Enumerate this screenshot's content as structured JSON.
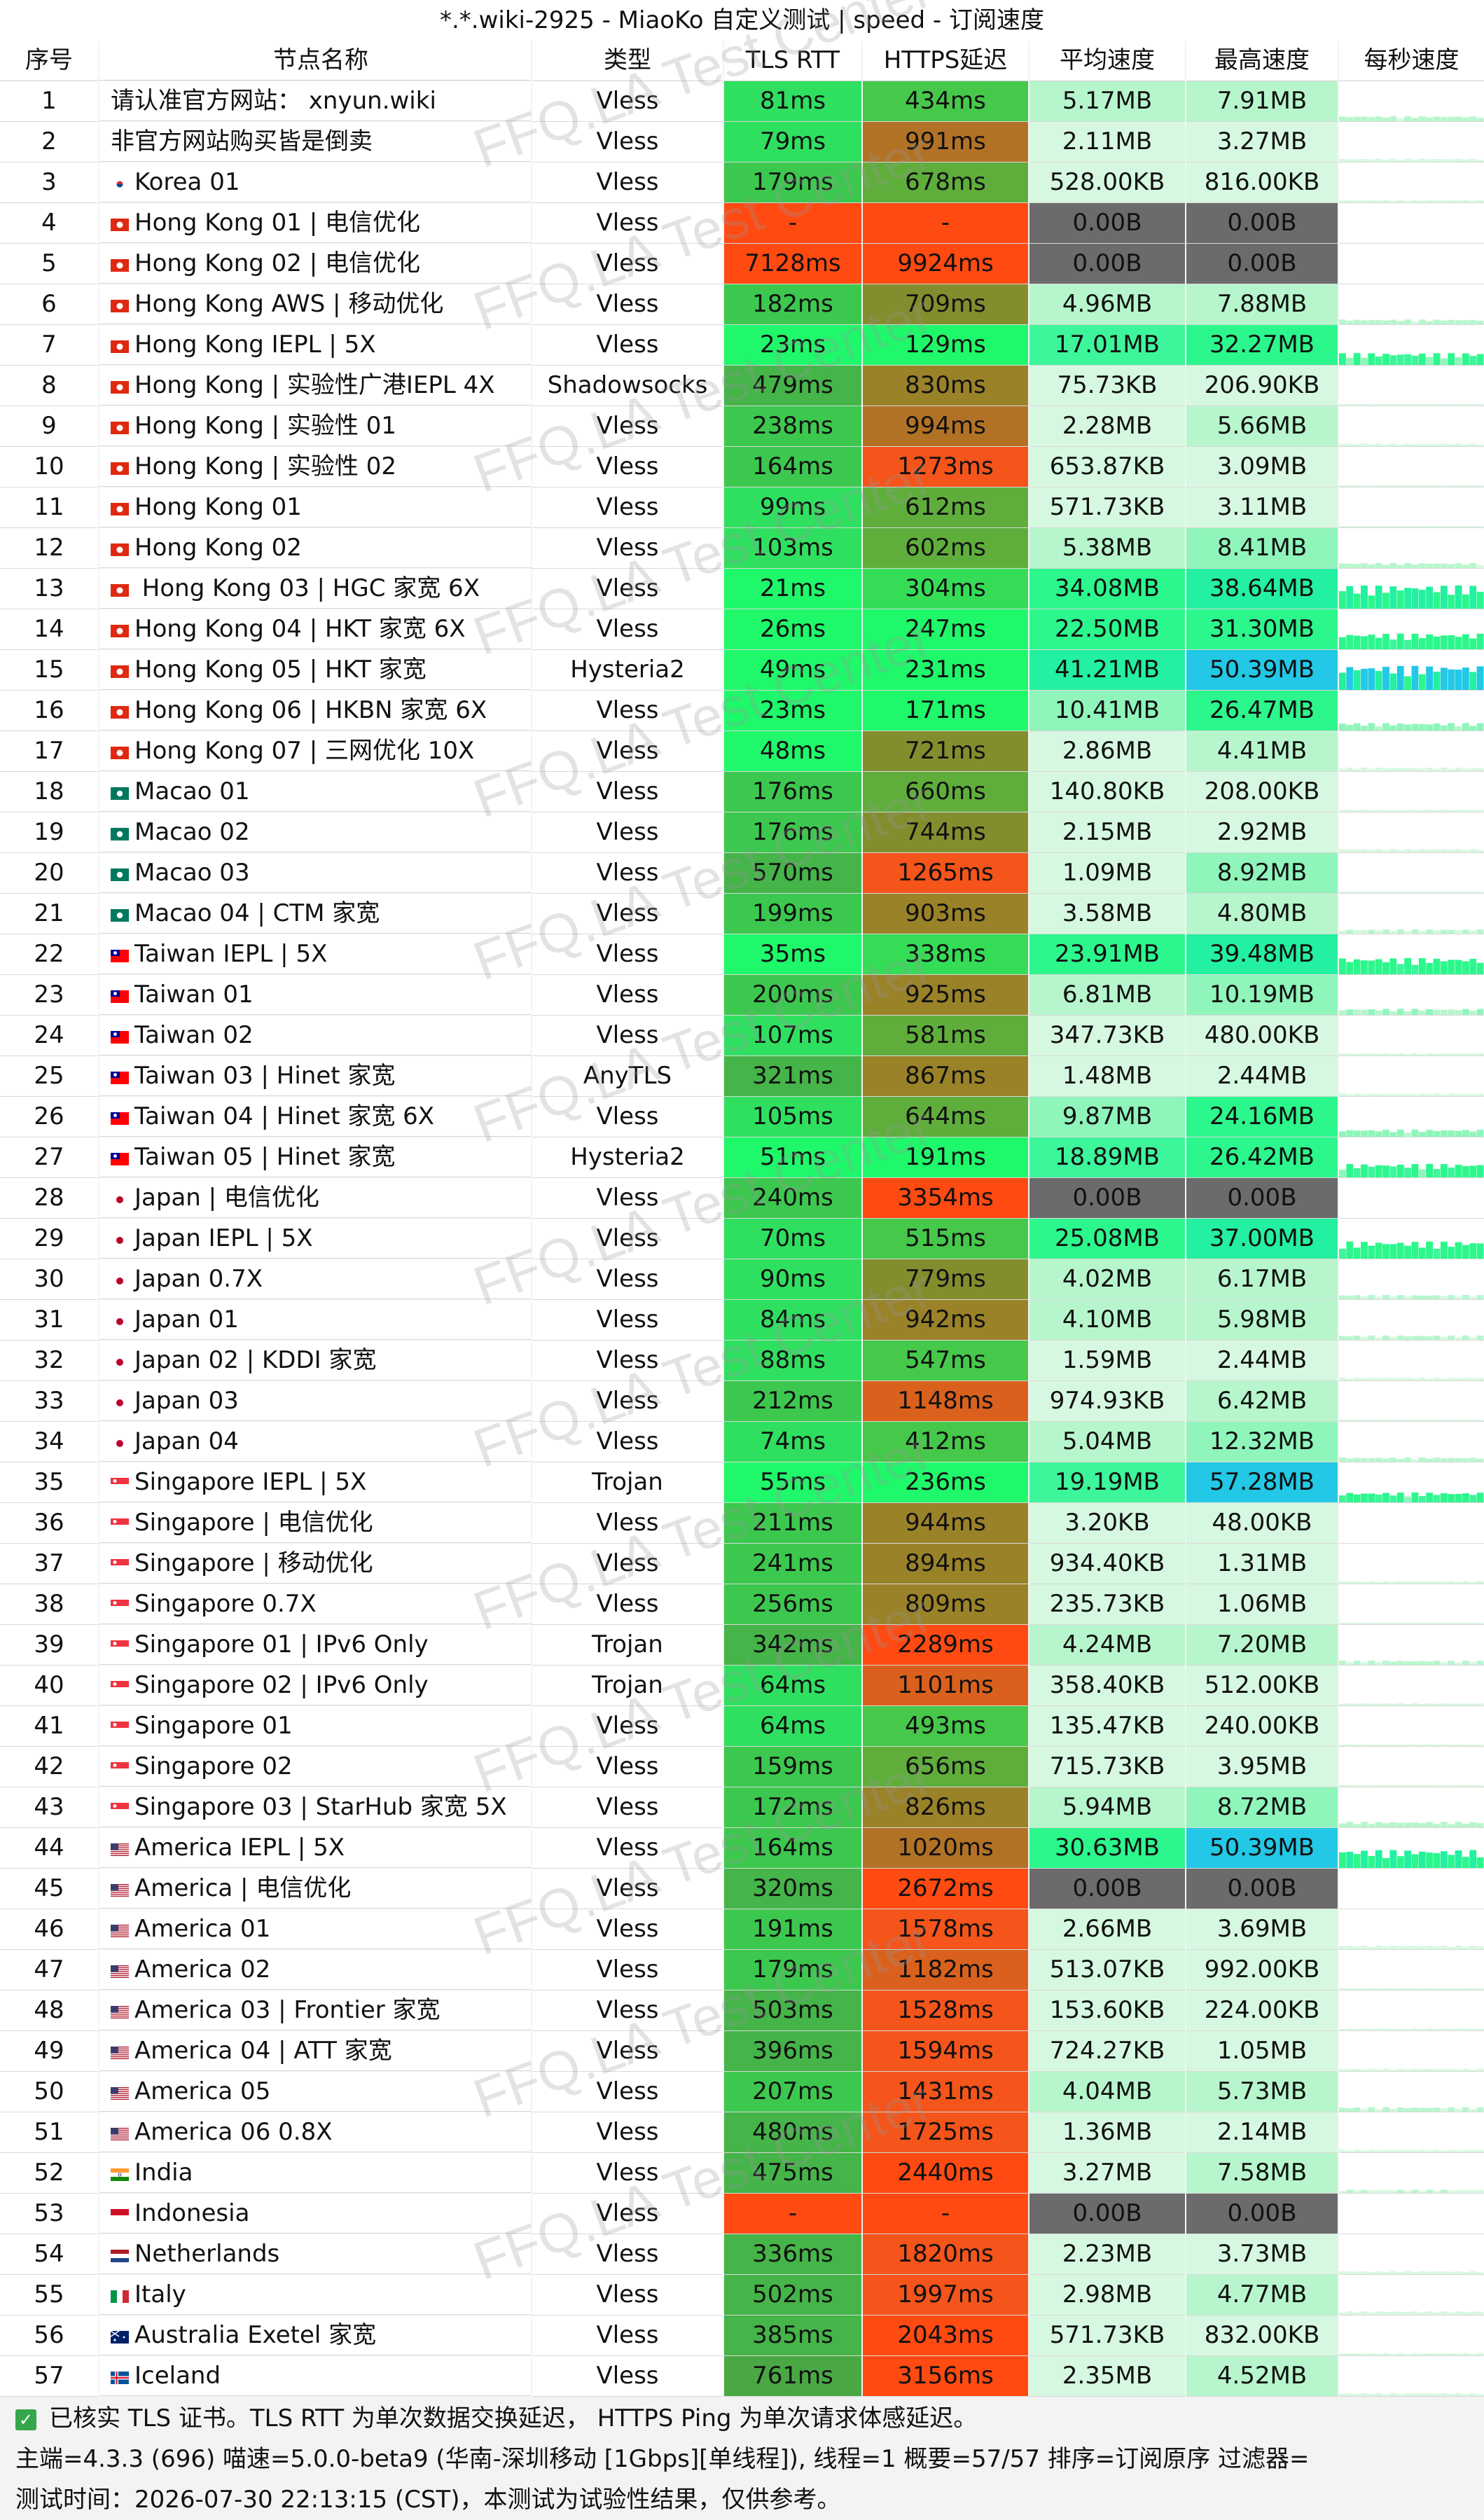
{
  "title": "*.*.wiki-2925 - MiaoKo 自定义测试 | speed - 订阅速度",
  "headers": [
    "序号",
    "节点名称",
    "类型",
    "TLS RTT",
    "HTTPS延迟",
    "平均速度",
    "最高速度",
    "每秒速度"
  ],
  "watermark": "FFQ.LA Test Center",
  "rows": [
    {
      "no": "1",
      "flag": null,
      "name": "请认准官方网站： xnyun.wiki",
      "type": "Vless",
      "tls": "81ms",
      "https": "434ms",
      "avg": "5.17MB",
      "max": "7.91MB"
    },
    {
      "no": "2",
      "flag": null,
      "name": "非官方网站购买皆是倒卖",
      "type": "Vless",
      "tls": "79ms",
      "https": "991ms",
      "avg": "2.11MB",
      "max": "3.27MB"
    },
    {
      "no": "3",
      "flag": "kr",
      "name": "Korea 01",
      "type": "Vless",
      "tls": "179ms",
      "https": "678ms",
      "avg": "528.00KB",
      "max": "816.00KB"
    },
    {
      "no": "4",
      "flag": "hk",
      "name": "Hong Kong 01 | 电信优化",
      "type": "Vless",
      "tls": "-",
      "https": "-",
      "avg": "0.00B",
      "max": "0.00B"
    },
    {
      "no": "5",
      "flag": "hk",
      "name": "Hong Kong 02 | 电信优化",
      "type": "Vless",
      "tls": "7128ms",
      "https": "9924ms",
      "avg": "0.00B",
      "max": "0.00B"
    },
    {
      "no": "6",
      "flag": "hk",
      "name": "Hong Kong AWS | 移动优化",
      "type": "Vless",
      "tls": "182ms",
      "https": "709ms",
      "avg": "4.96MB",
      "max": "7.88MB"
    },
    {
      "no": "7",
      "flag": "hk",
      "name": "Hong Kong IEPL | 5X",
      "type": "Vless",
      "tls": "23ms",
      "https": "129ms",
      "avg": "17.01MB",
      "max": "32.27MB"
    },
    {
      "no": "8",
      "flag": "hk",
      "name": "Hong Kong | 实验性广港IEPL 4X",
      "type": "Shadowsocks",
      "tls": "479ms",
      "https": "830ms",
      "avg": "75.73KB",
      "max": "206.90KB"
    },
    {
      "no": "9",
      "flag": "hk",
      "name": "Hong Kong | 实验性 01",
      "type": "Vless",
      "tls": "238ms",
      "https": "994ms",
      "avg": "2.28MB",
      "max": "5.66MB"
    },
    {
      "no": "10",
      "flag": "hk",
      "name": "Hong Kong | 实验性 02",
      "type": "Vless",
      "tls": "164ms",
      "https": "1273ms",
      "avg": "653.87KB",
      "max": "3.09MB"
    },
    {
      "no": "11",
      "flag": "hk",
      "name": "Hong Kong 01",
      "type": "Vless",
      "tls": "99ms",
      "https": "612ms",
      "avg": "571.73KB",
      "max": "3.11MB"
    },
    {
      "no": "12",
      "flag": "hk",
      "name": "Hong Kong 02",
      "type": "Vless",
      "tls": "103ms",
      "https": "602ms",
      "avg": "5.38MB",
      "max": "8.41MB"
    },
    {
      "no": "13",
      "flag": "hk",
      "name": " Hong Kong 03 | HGC 家宽 6X",
      "type": "Vless",
      "tls": "21ms",
      "https": "304ms",
      "avg": "34.08MB",
      "max": "38.64MB"
    },
    {
      "no": "14",
      "flag": "hk",
      "name": "Hong Kong 04 | HKT 家宽 6X",
      "type": "Vless",
      "tls": "26ms",
      "https": "247ms",
      "avg": "22.50MB",
      "max": "31.30MB"
    },
    {
      "no": "15",
      "flag": "hk",
      "name": "Hong Kong 05 | HKT 家宽",
      "type": "Hysteria2",
      "tls": "49ms",
      "https": "231ms",
      "avg": "41.21MB",
      "max": "50.39MB"
    },
    {
      "no": "16",
      "flag": "hk",
      "name": "Hong Kong 06 | HKBN 家宽 6X",
      "type": "Vless",
      "tls": "23ms",
      "https": "171ms",
      "avg": "10.41MB",
      "max": "26.47MB"
    },
    {
      "no": "17",
      "flag": "hk",
      "name": "Hong Kong 07 | 三网优化 10X",
      "type": "Vless",
      "tls": "48ms",
      "https": "721ms",
      "avg": "2.86MB",
      "max": "4.41MB"
    },
    {
      "no": "18",
      "flag": "mo",
      "name": "Macao 01",
      "type": "Vless",
      "tls": "176ms",
      "https": "660ms",
      "avg": "140.80KB",
      "max": "208.00KB"
    },
    {
      "no": "19",
      "flag": "mo",
      "name": "Macao 02",
      "type": "Vless",
      "tls": "176ms",
      "https": "744ms",
      "avg": "2.15MB",
      "max": "2.92MB"
    },
    {
      "no": "20",
      "flag": "mo",
      "name": "Macao 03",
      "type": "Vless",
      "tls": "570ms",
      "https": "1265ms",
      "avg": "1.09MB",
      "max": "8.92MB"
    },
    {
      "no": "21",
      "flag": "mo",
      "name": "Macao 04 | CTM 家宽",
      "type": "Vless",
      "tls": "199ms",
      "https": "903ms",
      "avg": "3.58MB",
      "max": "4.80MB"
    },
    {
      "no": "22",
      "flag": "tw",
      "name": "Taiwan IEPL | 5X",
      "type": "Vless",
      "tls": "35ms",
      "https": "338ms",
      "avg": "23.91MB",
      "max": "39.48MB"
    },
    {
      "no": "23",
      "flag": "tw",
      "name": "Taiwan 01",
      "type": "Vless",
      "tls": "200ms",
      "https": "925ms",
      "avg": "6.81MB",
      "max": "10.19MB"
    },
    {
      "no": "24",
      "flag": "tw",
      "name": "Taiwan 02",
      "type": "Vless",
      "tls": "107ms",
      "https": "581ms",
      "avg": "347.73KB",
      "max": "480.00KB"
    },
    {
      "no": "25",
      "flag": "tw",
      "name": "Taiwan 03 | Hinet 家宽",
      "type": "AnyTLS",
      "tls": "321ms",
      "https": "867ms",
      "avg": "1.48MB",
      "max": "2.44MB"
    },
    {
      "no": "26",
      "flag": "tw",
      "name": "Taiwan 04 | Hinet 家宽 6X",
      "type": "Vless",
      "tls": "105ms",
      "https": "644ms",
      "avg": "9.87MB",
      "max": "24.16MB"
    },
    {
      "no": "27",
      "flag": "tw",
      "name": "Taiwan 05 | Hinet 家宽",
      "type": "Hysteria2",
      "tls": "51ms",
      "https": "191ms",
      "avg": "18.89MB",
      "max": "26.42MB"
    },
    {
      "no": "28",
      "flag": "jp",
      "name": "Japan | 电信优化",
      "type": "Vless",
      "tls": "240ms",
      "https": "3354ms",
      "avg": "0.00B",
      "max": "0.00B"
    },
    {
      "no": "29",
      "flag": "jp",
      "name": "Japan IEPL | 5X",
      "type": "Vless",
      "tls": "70ms",
      "https": "515ms",
      "avg": "25.08MB",
      "max": "37.00MB"
    },
    {
      "no": "30",
      "flag": "jp",
      "name": "Japan 0.7X",
      "type": "Vless",
      "tls": "90ms",
      "https": "779ms",
      "avg": "4.02MB",
      "max": "6.17MB"
    },
    {
      "no": "31",
      "flag": "jp",
      "name": "Japan 01",
      "type": "Vless",
      "tls": "84ms",
      "https": "942ms",
      "avg": "4.10MB",
      "max": "5.98MB"
    },
    {
      "no": "32",
      "flag": "jp",
      "name": "Japan 02 | KDDI 家宽",
      "type": "Vless",
      "tls": "88ms",
      "https": "547ms",
      "avg": "1.59MB",
      "max": "2.44MB"
    },
    {
      "no": "33",
      "flag": "jp",
      "name": "Japan 03",
      "type": "Vless",
      "tls": "212ms",
      "https": "1148ms",
      "avg": "974.93KB",
      "max": "6.42MB"
    },
    {
      "no": "34",
      "flag": "jp",
      "name": "Japan 04",
      "type": "Vless",
      "tls": "74ms",
      "https": "412ms",
      "avg": "5.04MB",
      "max": "12.32MB"
    },
    {
      "no": "35",
      "flag": "sg",
      "name": "Singapore IEPL | 5X",
      "type": "Trojan",
      "tls": "55ms",
      "https": "236ms",
      "avg": "19.19MB",
      "max": "57.28MB"
    },
    {
      "no": "36",
      "flag": "sg",
      "name": "Singapore | 电信优化",
      "type": "Vless",
      "tls": "211ms",
      "https": "944ms",
      "avg": "3.20KB",
      "max": "48.00KB"
    },
    {
      "no": "37",
      "flag": "sg",
      "name": "Singapore | 移动优化",
      "type": "Vless",
      "tls": "241ms",
      "https": "894ms",
      "avg": "934.40KB",
      "max": "1.31MB"
    },
    {
      "no": "38",
      "flag": "sg",
      "name": "Singapore 0.7X",
      "type": "Vless",
      "tls": "256ms",
      "https": "809ms",
      "avg": "235.73KB",
      "max": "1.06MB"
    },
    {
      "no": "39",
      "flag": "sg",
      "name": "Singapore 01 | IPv6 Only",
      "type": "Trojan",
      "tls": "342ms",
      "https": "2289ms",
      "avg": "4.24MB",
      "max": "7.20MB"
    },
    {
      "no": "40",
      "flag": "sg",
      "name": "Singapore 02 | IPv6 Only",
      "type": "Trojan",
      "tls": "64ms",
      "https": "1101ms",
      "avg": "358.40KB",
      "max": "512.00KB"
    },
    {
      "no": "41",
      "flag": "sg",
      "name": "Singapore 01",
      "type": "Vless",
      "tls": "64ms",
      "https": "493ms",
      "avg": "135.47KB",
      "max": "240.00KB"
    },
    {
      "no": "42",
      "flag": "sg",
      "name": "Singapore 02",
      "type": "Vless",
      "tls": "159ms",
      "https": "656ms",
      "avg": "715.73KB",
      "max": "3.95MB"
    },
    {
      "no": "43",
      "flag": "sg",
      "name": "Singapore 03 | StarHub 家宽 5X",
      "type": "Vless",
      "tls": "172ms",
      "https": "826ms",
      "avg": "5.94MB",
      "max": "8.72MB"
    },
    {
      "no": "44",
      "flag": "us",
      "name": "America IEPL | 5X",
      "type": "Vless",
      "tls": "164ms",
      "https": "1020ms",
      "avg": "30.63MB",
      "max": "50.39MB"
    },
    {
      "no": "45",
      "flag": "us",
      "name": "America | 电信优化",
      "type": "Vless",
      "tls": "320ms",
      "https": "2672ms",
      "avg": "0.00B",
      "max": "0.00B"
    },
    {
      "no": "46",
      "flag": "us",
      "name": "America 01",
      "type": "Vless",
      "tls": "191ms",
      "https": "1578ms",
      "avg": "2.66MB",
      "max": "3.69MB"
    },
    {
      "no": "47",
      "flag": "us",
      "name": "America 02",
      "type": "Vless",
      "tls": "179ms",
      "https": "1182ms",
      "avg": "513.07KB",
      "max": "992.00KB"
    },
    {
      "no": "48",
      "flag": "us",
      "name": "America 03 | Frontier 家宽",
      "type": "Vless",
      "tls": "503ms",
      "https": "1528ms",
      "avg": "153.60KB",
      "max": "224.00KB"
    },
    {
      "no": "49",
      "flag": "us",
      "name": "America 04 | ATT 家宽",
      "type": "Vless",
      "tls": "396ms",
      "https": "1594ms",
      "avg": "724.27KB",
      "max": "1.05MB"
    },
    {
      "no": "50",
      "flag": "us",
      "name": "America 05",
      "type": "Vless",
      "tls": "207ms",
      "https": "1431ms",
      "avg": "4.04MB",
      "max": "5.73MB"
    },
    {
      "no": "51",
      "flag": "us",
      "name": "America 06 0.8X",
      "type": "Vless",
      "tls": "480ms",
      "https": "1725ms",
      "avg": "1.36MB",
      "max": "2.14MB"
    },
    {
      "no": "52",
      "flag": "in",
      "name": "India",
      "type": "Vless",
      "tls": "475ms",
      "https": "2440ms",
      "avg": "3.27MB",
      "max": "7.58MB"
    },
    {
      "no": "53",
      "flag": "id",
      "name": "Indonesia",
      "type": "Vless",
      "tls": "-",
      "https": "-",
      "avg": "0.00B",
      "max": "0.00B"
    },
    {
      "no": "54",
      "flag": "nl",
      "name": "Netherlands",
      "type": "Vless",
      "tls": "336ms",
      "https": "1820ms",
      "avg": "2.23MB",
      "max": "3.73MB"
    },
    {
      "no": "55",
      "flag": "it",
      "name": "Italy",
      "type": "Vless",
      "tls": "502ms",
      "https": "1997ms",
      "avg": "2.98MB",
      "max": "4.77MB"
    },
    {
      "no": "56",
      "flag": "au",
      "name": "Australia Exetel 家宽",
      "type": "Vless",
      "tls": "385ms",
      "https": "2043ms",
      "avg": "571.73KB",
      "max": "832.00KB"
    },
    {
      "no": "57",
      "flag": "is",
      "name": "Iceland",
      "type": "Vless",
      "tls": "761ms",
      "https": "3156ms",
      "avg": "2.35MB",
      "max": "4.52MB"
    }
  ],
  "footer": {
    "line1": "已核实 TLS 证书。TLS RTT 为单次数据交换延迟， HTTPS Ping 为单次请求体感延迟。",
    "line2": "主端=4.3.3 (696) 喵速=5.0.0-beta9 (华南-深圳移动 [1Gbps][单线程]), 线程=1 概要=57/57 排序=订阅原序 过滤器=",
    "line3": "测试时间：2026-07-30 22:13:15 (CST)，本测试为试验性结果，仅供参考。"
  }
}
